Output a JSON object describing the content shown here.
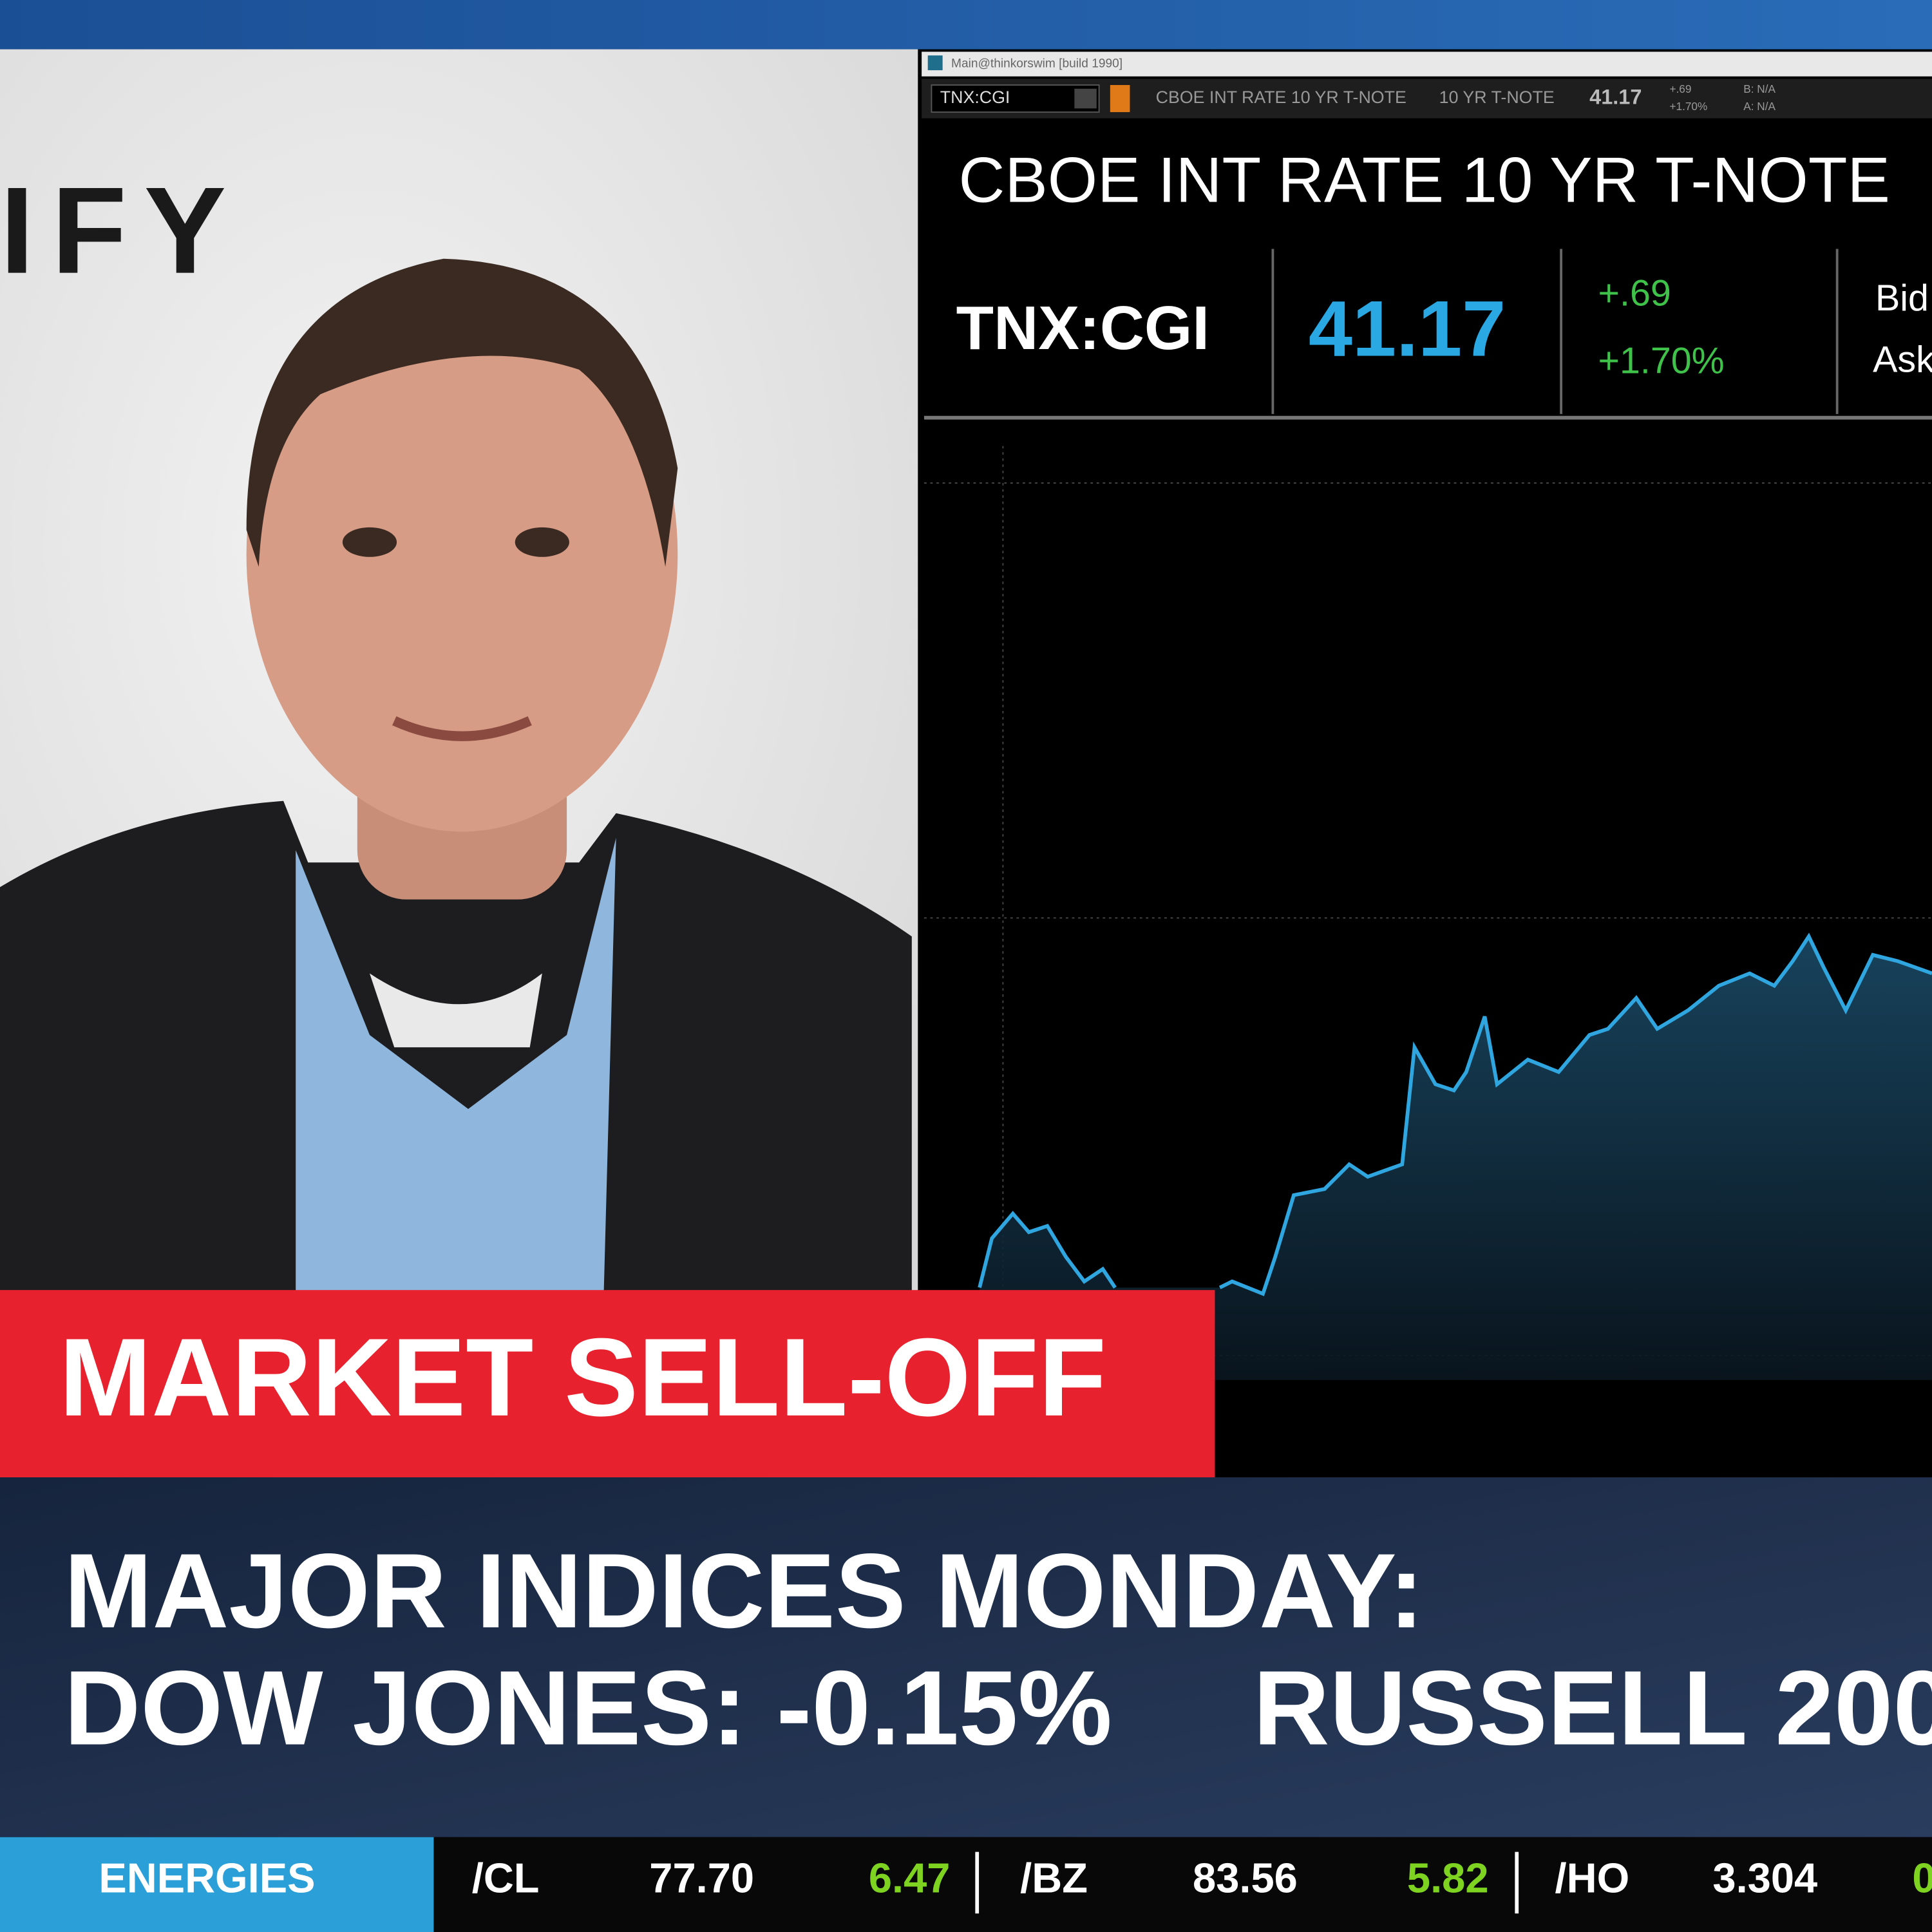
{
  "window": {
    "title": "Main@thinkorswim [build 1990]"
  },
  "toolbar": {
    "symbol": "TNX:CGI",
    "description": "CBOE INT RATE 10 YR T-NOTE",
    "short_name": "10 YR T-NOTE",
    "last": "41.17",
    "change": "+.69",
    "change_pct": "+1.70%",
    "bid": "B: N/A",
    "ask": "A: N/A"
  },
  "quote": {
    "title": "CBOE INT RATE 10 YR T-NOTE",
    "symbol": "TNX:CGI",
    "last": "41.17",
    "change": "+.69",
    "change_pct": "+1.70%",
    "bid_label": "Bid",
    "ask_label": "Ask"
  },
  "logo": {
    "text": "IFY"
  },
  "lower_third": {
    "tag": "MARKET SELL-OFF",
    "lines": [
      "MAJOR INDICES MONDAY:",
      "DOW JONES: -0.15%",
      "RUSSELL 200"
    ]
  },
  "ticker": {
    "category": "ENERGIES",
    "items": [
      {
        "symbol": "/CL",
        "price": "77.70",
        "change": "6.47"
      },
      {
        "symbol": "/BZ",
        "price": "83.56",
        "change": "5.82"
      },
      {
        "symbol": "/HO",
        "price": "3.304",
        "change": "0"
      }
    ]
  }
}
